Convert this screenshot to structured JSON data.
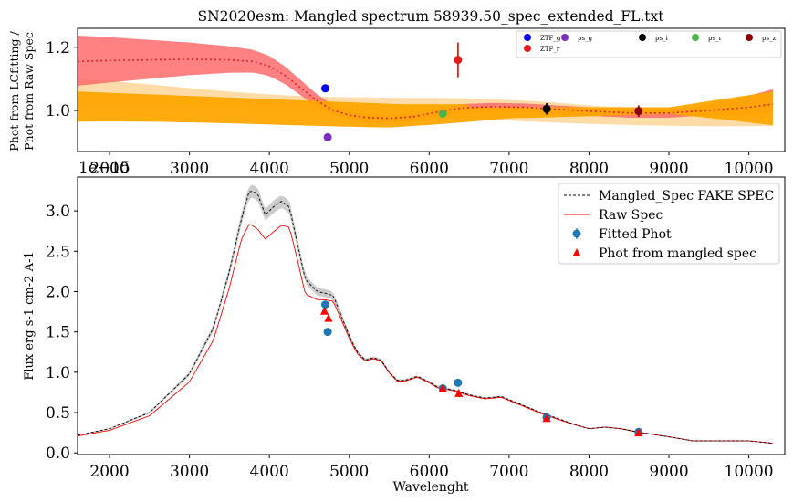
{
  "chart_data": [
    {
      "type": "line",
      "panel": "top",
      "title": "SN2020esm: Mangled spectrum 58939.50_spec_extended_FL.txt",
      "xlabel": "",
      "ylabel_line1": "Phot from LCfitting /",
      "ylabel_line2": "Phot from Raw Spec",
      "xlim": [
        1600,
        10450
      ],
      "ylim": [
        0.87,
        1.26
      ],
      "xticks": [
        2000,
        3000,
        4000,
        5000,
        6000,
        7000,
        8000,
        9000,
        10000
      ],
      "yticks": [
        1.0,
        1.2
      ],
      "ytick_labels": [
        "1.0",
        "1.2"
      ],
      "offset_label": "1e−15",
      "colors": {
        "red_band": "#ff6b6b",
        "orange_band": "#ffa500",
        "light_orange_band": "#ffd08a",
        "dotted_line": "#d62728"
      },
      "ratio_curve": {
        "x": [
          1600,
          2000,
          2500,
          3000,
          3500,
          3800,
          4000,
          4200,
          4400,
          4600,
          4800,
          5000,
          5200,
          5500,
          5800,
          6100,
          6400,
          6800,
          7200,
          7600,
          8000,
          8500,
          9000,
          9500,
          10000,
          10300
        ],
        "y": [
          1.155,
          1.158,
          1.16,
          1.162,
          1.16,
          1.155,
          1.14,
          1.11,
          1.07,
          1.03,
          1.0,
          0.985,
          0.978,
          0.975,
          0.98,
          0.995,
          1.008,
          1.012,
          1.01,
          1.004,
          0.998,
          0.992,
          0.992,
          1.0,
          1.01,
          1.02
        ]
      },
      "points": [
        {
          "filter": "ZTF_g",
          "x": 4700,
          "y": 1.07,
          "err": 0.0,
          "color": "#0000ff"
        },
        {
          "filter": "ps_g",
          "x": 4730,
          "y": 0.915,
          "err": 0.012,
          "color": "#7b2fbe"
        },
        {
          "filter": "ps_r",
          "x": 6170,
          "y": 0.99,
          "err": 0.012,
          "color": "#4cb24c"
        },
        {
          "filter": "ZTF_r",
          "x": 6360,
          "y": 1.16,
          "err": 0.055,
          "color": "#e41a1c"
        },
        {
          "filter": "ps_i",
          "x": 7470,
          "y": 1.005,
          "err": 0.018,
          "color": "#000000"
        },
        {
          "filter": "ps_z",
          "x": 8620,
          "y": 0.998,
          "err": 0.018,
          "color": "#8b0000"
        }
      ],
      "legend": [
        {
          "label": "ZTF_g",
          "color": "#0000ff"
        },
        {
          "label": "ps_g",
          "color": "#7b2fbe"
        },
        {
          "label": "ps_i",
          "color": "#000000"
        },
        {
          "label": "ps_r",
          "color": "#4cb24c"
        },
        {
          "label": "ps_z",
          "color": "#8b0000"
        },
        {
          "label": "ZTF_r",
          "color": "#e41a1c"
        }
      ],
      "legend_position": "top-right"
    },
    {
      "type": "line",
      "panel": "bottom",
      "title": "",
      "xlabel": "Wavelenght",
      "ylabel": "Flux erg s-1 cm-2 A-1",
      "xlim": [
        1600,
        10450
      ],
      "ylim": [
        -0.02,
        3.42
      ],
      "xticks": [
        2000,
        3000,
        4000,
        5000,
        6000,
        7000,
        8000,
        9000,
        10000
      ],
      "yticks": [
        0.0,
        0.5,
        1.0,
        1.5,
        2.0,
        2.5,
        3.0
      ],
      "ytick_labels": [
        "0.0",
        "0.5",
        "1.0",
        "1.5",
        "2.0",
        "2.5",
        "3.0"
      ],
      "mangled_spec": {
        "x": [
          1600,
          2000,
          2500,
          3000,
          3300,
          3500,
          3650,
          3750,
          3850,
          3950,
          4050,
          4150,
          4250,
          4350,
          4450,
          4600,
          4700,
          4800,
          4900,
          5000,
          5100,
          5200,
          5300,
          5400,
          5500,
          5600,
          5700,
          5850,
          6000,
          6100,
          6200,
          6350,
          6500,
          6700,
          6900,
          7100,
          7400,
          7600,
          7800,
          8000,
          8200,
          8400,
          8600,
          8800,
          9000,
          9300,
          9600,
          10000,
          10300
        ],
        "y": [
          0.22,
          0.3,
          0.5,
          0.98,
          1.55,
          2.25,
          2.9,
          3.25,
          3.22,
          2.95,
          3.05,
          3.12,
          3.05,
          2.6,
          2.15,
          2.0,
          1.98,
          1.95,
          1.7,
          1.45,
          1.25,
          1.15,
          1.18,
          1.15,
          1.0,
          0.9,
          0.9,
          0.95,
          0.88,
          0.82,
          0.8,
          0.77,
          0.72,
          0.68,
          0.7,
          0.62,
          0.5,
          0.43,
          0.36,
          0.3,
          0.32,
          0.3,
          0.26,
          0.23,
          0.2,
          0.15,
          0.15,
          0.15,
          0.12
        ]
      },
      "raw_spec": {
        "x": [
          1600,
          2000,
          2500,
          3000,
          3300,
          3500,
          3650,
          3750,
          3850,
          3950,
          4050,
          4150,
          4250,
          4350,
          4450,
          4600,
          4700,
          4800,
          4900,
          5000,
          5100,
          5200,
          5300,
          5400,
          5500,
          5600,
          5700,
          5850,
          6000,
          6100,
          6200,
          6350,
          6500,
          6700,
          6900,
          7100,
          7400,
          7600,
          7800,
          8000,
          8200,
          8400,
          8600,
          8800,
          9000,
          9300,
          9600,
          10000,
          10300
        ],
        "y": [
          0.21,
          0.28,
          0.46,
          0.88,
          1.4,
          2.05,
          2.65,
          2.84,
          2.78,
          2.65,
          2.74,
          2.82,
          2.8,
          2.4,
          1.97,
          1.9,
          1.9,
          1.88,
          1.65,
          1.42,
          1.23,
          1.14,
          1.17,
          1.14,
          0.99,
          0.89,
          0.89,
          0.94,
          0.87,
          0.81,
          0.79,
          0.76,
          0.71,
          0.67,
          0.69,
          0.61,
          0.49,
          0.42,
          0.355,
          0.3,
          0.32,
          0.3,
          0.26,
          0.23,
          0.2,
          0.15,
          0.15,
          0.15,
          0.12
        ]
      },
      "fitted_phot": [
        {
          "x": 4700,
          "y": 1.84
        },
        {
          "x": 4730,
          "y": 1.5
        },
        {
          "x": 6170,
          "y": 0.8
        },
        {
          "x": 6360,
          "y": 0.87
        },
        {
          "x": 7470,
          "y": 0.44
        },
        {
          "x": 8620,
          "y": 0.26
        }
      ],
      "phot_mangled": [
        {
          "x": 4690,
          "y": 1.76
        },
        {
          "x": 4740,
          "y": 1.67
        },
        {
          "x": 6170,
          "y": 0.8
        },
        {
          "x": 6370,
          "y": 0.74
        },
        {
          "x": 7470,
          "y": 0.43
        },
        {
          "x": 8620,
          "y": 0.25
        }
      ],
      "legend": [
        {
          "label": "Mangled_Spec FAKE SPEC",
          "style": "dashed-line",
          "color": "#000000"
        },
        {
          "label": "Raw Spec",
          "style": "line",
          "color": "#ff0000"
        },
        {
          "label": "Fitted Phot",
          "style": "errorbar-dot",
          "color": "#1f77b4"
        },
        {
          "label": "Phot from mangled spec",
          "style": "triangle",
          "color": "#ff0000"
        }
      ],
      "legend_position": "top-right"
    }
  ]
}
